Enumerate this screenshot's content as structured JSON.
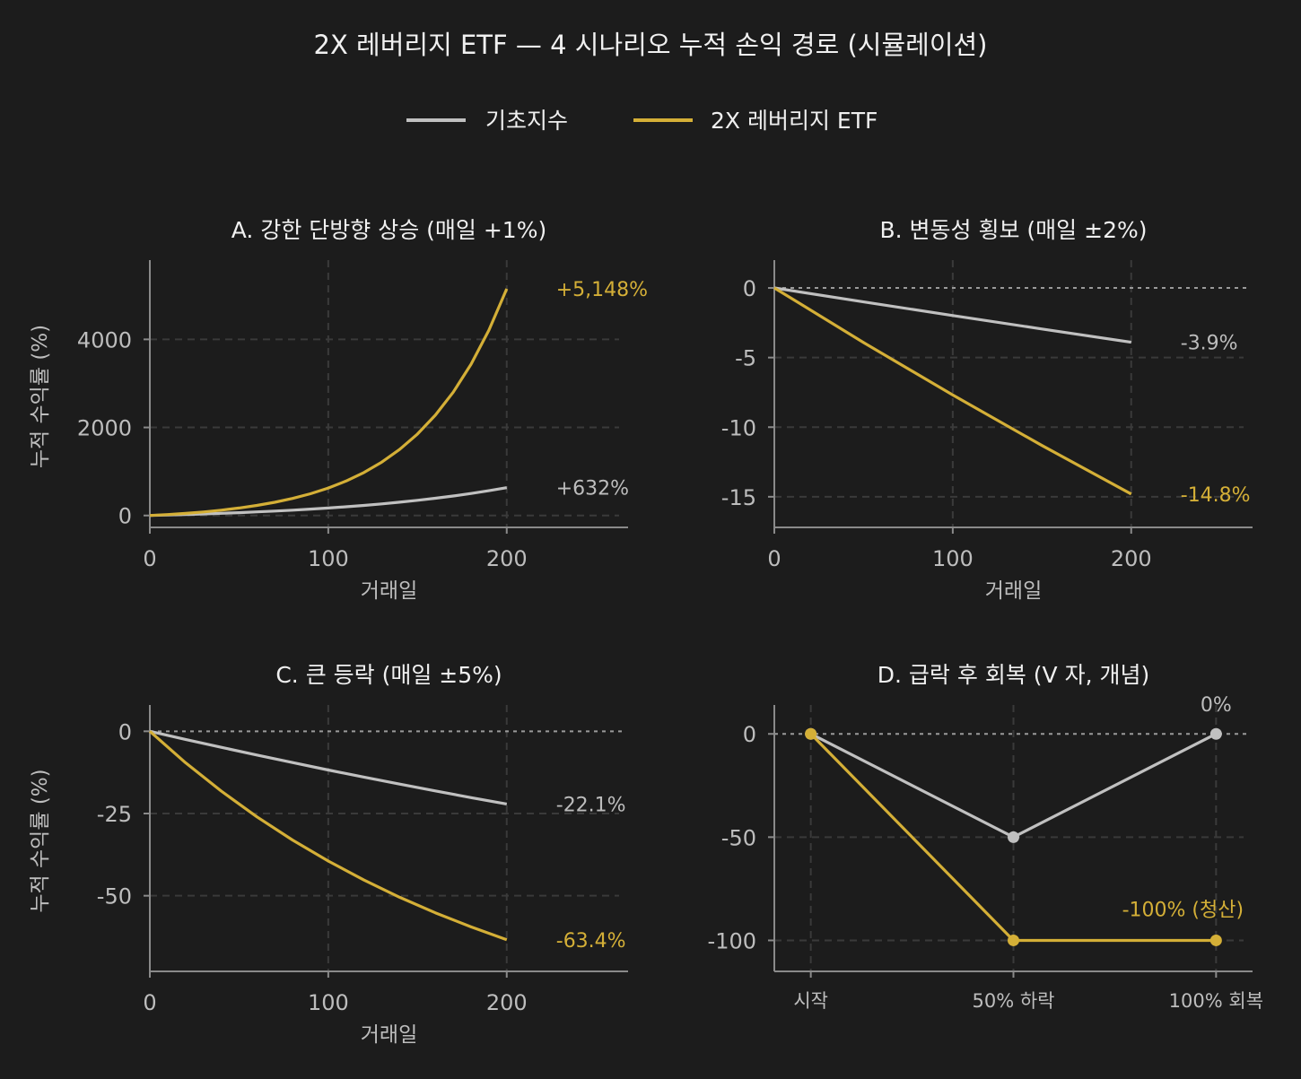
{
  "title": "2X 레버리지 ETF — 4 시나리오 누적 손익 경로 (시뮬레이션)",
  "colors": {
    "background": "#1c1c1c",
    "base": "#c0c0c0",
    "etf": "#d4af37",
    "grid": "#3a3a3a",
    "axis": "#8a8a8a",
    "text": "#f0f0f0",
    "muted": "#bdbdbd"
  },
  "legend": [
    {
      "label": "기초지수",
      "color": "#c0c0c0"
    },
    {
      "label": "2X 레버리지 ETF",
      "color": "#d4af37"
    }
  ],
  "chart_data": [
    {
      "type": "line",
      "title": "A. 강한 단방향 상승 (매일 +1%)",
      "xlabel": "거래일",
      "ylabel": "누적 수익률 (%)",
      "xlim": [
        0,
        268
      ],
      "ylim": [
        -270,
        5800
      ],
      "xticks": [
        0,
        100,
        200
      ],
      "yticks": [
        0,
        2000,
        4000
      ],
      "ytick_labels": [
        "0",
        "2000",
        "4000"
      ],
      "grid": true,
      "zero_line": false,
      "x": [
        0,
        10,
        20,
        30,
        40,
        50,
        60,
        70,
        80,
        90,
        100,
        110,
        120,
        130,
        140,
        150,
        160,
        170,
        180,
        190,
        200
      ],
      "series": [
        {
          "name": "기초지수",
          "values": [
            0,
            10.5,
            22.0,
            34.8,
            48.9,
            64.5,
            81.7,
            100.7,
            121.7,
            144.9,
            170.5,
            198.7,
            230.0,
            264.5,
            302.7,
            344.8,
            391.4,
            442.8,
            499.6,
            562.5,
            631.6
          ],
          "end_label": "+632%"
        },
        {
          "name": "2X 레버리지 ETF",
          "values": [
            0,
            21.9,
            48.6,
            81.1,
            120.8,
            169.2,
            228.1,
            300.0,
            387.6,
            494.4,
            624.6,
            783.5,
            977.1,
            1213.0,
            1500.7,
            1851.4,
            2279.0,
            2800.1,
            3435.4,
            4209.9,
            5148.0
          ],
          "end_label": "+5,148%"
        }
      ]
    },
    {
      "type": "line",
      "title": "B. 변동성 횡보 (매일 ±2%)",
      "xlabel": "거래일",
      "ylabel": "",
      "xlim": [
        0,
        268
      ],
      "ylim": [
        -17.2,
        2
      ],
      "xticks": [
        0,
        100,
        200
      ],
      "yticks": [
        0,
        -5,
        -10,
        -15
      ],
      "ytick_labels": [
        "0",
        "-5",
        "-10",
        "-15"
      ],
      "grid": true,
      "zero_line": true,
      "x": [
        0,
        50,
        100,
        150,
        200
      ],
      "series": [
        {
          "name": "기초지수",
          "values": [
            0,
            -1.0,
            -1.98,
            -2.95,
            -3.9
          ],
          "end_label": "-3.9%"
        },
        {
          "name": "2X 레버리지 ETF",
          "values": [
            0,
            -3.92,
            -7.69,
            -11.32,
            -14.8
          ],
          "end_label": "-14.8%"
        }
      ]
    },
    {
      "type": "line",
      "title": "C. 큰 등락 (매일 ±5%)",
      "xlabel": "거래일",
      "ylabel": "누적 수익률 (%)",
      "xlim": [
        0,
        268
      ],
      "ylim": [
        -73,
        8
      ],
      "xticks": [
        0,
        100,
        200
      ],
      "yticks": [
        0,
        -25,
        -50
      ],
      "ytick_labels": [
        "0",
        "-25",
        "-50"
      ],
      "grid": true,
      "zero_line": true,
      "x": [
        0,
        20,
        40,
        60,
        80,
        100,
        120,
        140,
        160,
        180,
        200
      ],
      "series": [
        {
          "name": "기초지수",
          "values": [
            0,
            -2.47,
            -4.88,
            -7.23,
            -9.52,
            -11.76,
            -13.94,
            -16.06,
            -18.14,
            -20.16,
            -22.1
          ],
          "end_label": "-22.1%"
        },
        {
          "name": "2X 레버리지 ETF",
          "values": [
            0,
            -9.55,
            -18.19,
            -26.0,
            -33.06,
            -39.45,
            -45.23,
            -50.46,
            -55.19,
            -59.46,
            -63.4
          ],
          "end_label": "-63.4%"
        }
      ]
    },
    {
      "type": "line",
      "title": "D. 급락 후 회복 (V 자, 개념)",
      "xlabel": "",
      "ylabel": "",
      "categories": [
        "시작",
        "50% 하락",
        "100% 회복"
      ],
      "xlim": [
        -0.18,
        2.18
      ],
      "ylim": [
        -115,
        14
      ],
      "yticks": [
        0,
        -50,
        -100
      ],
      "ytick_labels": [
        "0",
        "-50",
        "-100"
      ],
      "grid": true,
      "zero_line": true,
      "markers": true,
      "series": [
        {
          "name": "기초지수",
          "values": [
            0,
            -50,
            0
          ],
          "end_label": "0%"
        },
        {
          "name": "2X 레버리지 ETF",
          "values": [
            0,
            -100,
            -100
          ],
          "end_label": "-100% (청산)"
        }
      ]
    }
  ]
}
